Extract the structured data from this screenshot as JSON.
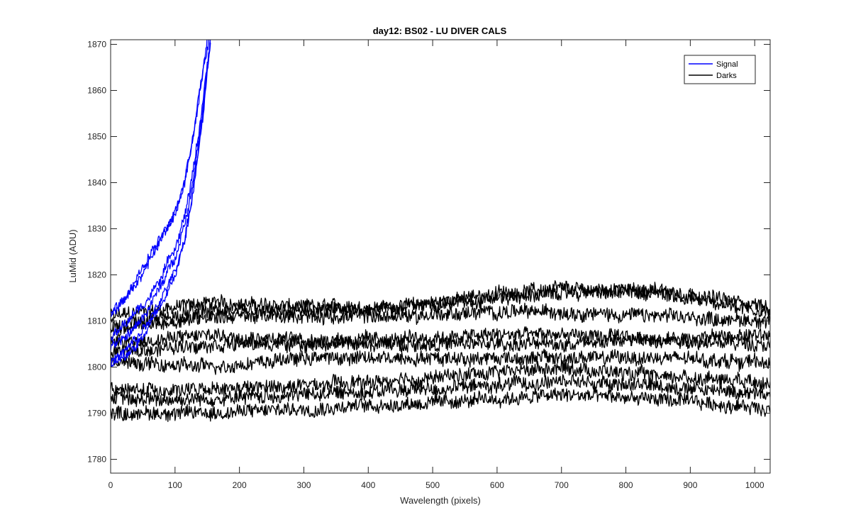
{
  "chart_data": {
    "type": "line",
    "title": "day12: BS02 - LU DIVER CALS",
    "xlabel": "Wavelength (pixels)",
    "ylabel": "LuMid (ADU)",
    "xlim": [
      0,
      1024
    ],
    "ylim": [
      1777,
      1871
    ],
    "xticks": [
      0,
      100,
      200,
      300,
      400,
      500,
      600,
      700,
      800,
      900,
      1000
    ],
    "yticks": [
      1780,
      1790,
      1800,
      1810,
      1820,
      1830,
      1840,
      1850,
      1860,
      1870
    ],
    "grid": false,
    "legend": {
      "position": "top-right",
      "entries": [
        {
          "name": "Signal",
          "color": "#0000ff"
        },
        {
          "name": "Darks",
          "color": "#000000"
        }
      ]
    },
    "series": [
      {
        "name": "Signal",
        "color": "#0000ff",
        "traces": [
          {
            "x": [
              0,
              20,
              40,
              60,
              80,
              100,
              115,
              125,
              135,
              145,
              150
            ],
            "y": [
              1811,
              1814,
              1818,
              1823,
              1828,
              1833,
              1840,
              1847,
              1856,
              1865,
              1871
            ]
          },
          {
            "x": [
              0,
              20,
              40,
              60,
              80,
              100,
              115,
              125,
              135,
              145,
              153
            ],
            "y": [
              1812,
              1815,
              1819,
              1824,
              1829,
              1834,
              1841,
              1848,
              1857,
              1866,
              1871
            ]
          },
          {
            "x": [
              0,
              20,
              40,
              60,
              80,
              100,
              115,
              125,
              135,
              145,
              155
            ],
            "y": [
              1806,
              1809,
              1812,
              1815,
              1820,
              1826,
              1833,
              1840,
              1849,
              1860,
              1871
            ]
          },
          {
            "x": [
              0,
              20,
              40,
              60,
              80,
              100,
              115,
              125,
              135,
              145,
              155
            ],
            "y": [
              1804,
              1806,
              1809,
              1813,
              1818,
              1824,
              1831,
              1838,
              1848,
              1859,
              1871
            ]
          },
          {
            "x": [
              0,
              20,
              40,
              60,
              80,
              100,
              115,
              125,
              135,
              145,
              155
            ],
            "y": [
              1801,
              1803,
              1806,
              1810,
              1815,
              1821,
              1828,
              1836,
              1846,
              1857,
              1871
            ]
          },
          {
            "x": [
              0,
              20,
              40,
              60,
              80,
              100,
              115,
              125,
              135,
              145,
              155
            ],
            "y": [
              1800,
              1802,
              1805,
              1809,
              1814,
              1820,
              1827,
              1835,
              1845,
              1856,
              1871
            ]
          }
        ]
      },
      {
        "name": "Darks",
        "color": "#000000",
        "traces": [
          {
            "x": [
              0,
              150,
              300,
              450,
              600,
              700,
              850,
              1024
            ],
            "y": [
              1811,
              1814,
              1813,
              1813,
              1816,
              1817,
              1816,
              1812
            ]
          },
          {
            "x": [
              0,
              150,
              300,
              450,
              600,
              700,
              850,
              1024
            ],
            "y": [
              1809,
              1812,
              1812,
              1813,
              1815,
              1816,
              1817,
              1813
            ]
          },
          {
            "x": [
              0,
              150,
              300,
              450,
              600,
              700,
              850,
              1024
            ],
            "y": [
              1808,
              1811,
              1811,
              1811,
              1812,
              1812,
              1811,
              1810
            ]
          },
          {
            "x": [
              0,
              150,
              300,
              450,
              600,
              700,
              850,
              1024
            ],
            "y": [
              1805,
              1807,
              1806,
              1806,
              1807,
              1807,
              1806,
              1807
            ]
          },
          {
            "x": [
              0,
              150,
              300,
              450,
              600,
              700,
              850,
              1024
            ],
            "y": [
              1803,
              1805,
              1805,
              1805,
              1805,
              1805,
              1806,
              1805
            ]
          },
          {
            "x": [
              0,
              150,
              300,
              450,
              600,
              700,
              850,
              1024
            ],
            "y": [
              1801,
              1800,
              1802,
              1802,
              1802,
              1802,
              1802,
              1801
            ]
          },
          {
            "x": [
              0,
              150,
              300,
              450,
              600,
              700,
              850,
              1024
            ],
            "y": [
              1795,
              1795,
              1796,
              1797,
              1799,
              1800,
              1798,
              1797
            ]
          },
          {
            "x": [
              0,
              150,
              300,
              450,
              600,
              700,
              850,
              1024
            ],
            "y": [
              1793,
              1793,
              1794,
              1795,
              1796,
              1797,
              1796,
              1794
            ]
          },
          {
            "x": [
              0,
              150,
              300,
              450,
              600,
              700,
              850,
              1024
            ],
            "y": [
              1790,
              1790,
              1791,
              1792,
              1793,
              1794,
              1793,
              1791
            ]
          }
        ]
      }
    ]
  }
}
